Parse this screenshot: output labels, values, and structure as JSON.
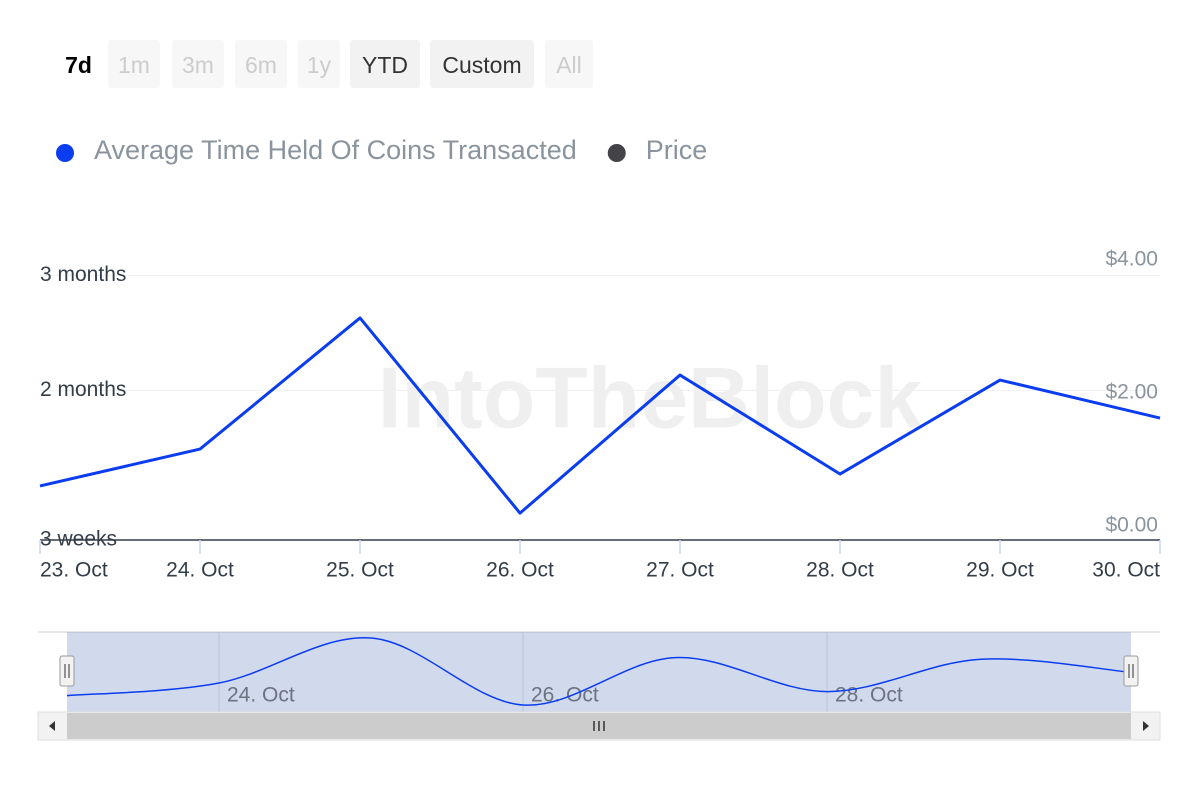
{
  "chart_data": {
    "type": "line",
    "range_buttons": [
      "7d",
      "1m",
      "3m",
      "6m",
      "1y",
      "YTD",
      "Custom",
      "All"
    ],
    "selected_button": "7d",
    "disabled_buttons": [
      "1m",
      "3m",
      "6m",
      "1y",
      "All"
    ],
    "watermark": "IntoTheBlock",
    "categories": [
      "23. Oct",
      "24. Oct",
      "25. Oct",
      "26. Oct",
      "27. Oct",
      "28. Oct",
      "29. Oct",
      "30. Oct"
    ],
    "series": [
      {
        "name": "Average Time Held Of Coins Transacted",
        "color": "#0a3cf0",
        "values": [
          35.1,
          44.7,
          78.9,
          28.0,
          64.0,
          38.2,
          62.7,
          52.8
        ]
      },
      {
        "name": "Price",
        "color": "#434348",
        "axis": "y2",
        "values": [
          null,
          null,
          null,
          null,
          null,
          null,
          null,
          null
        ]
      }
    ],
    "ylim": [
      21,
      94
    ],
    "yticks": [
      {
        "value": 21,
        "label": "3 weeks"
      },
      {
        "value": 60,
        "label": "2 months"
      },
      {
        "value": 90,
        "label": "3 months"
      }
    ],
    "y2lim": [
      -0.21,
      4
    ],
    "y2ticks": [
      {
        "value": 0,
        "label": "$0.00"
      },
      {
        "value": 2,
        "label": "$2.00"
      },
      {
        "value": 4,
        "label": "$4.00"
      }
    ],
    "navigator_ticks": [
      1,
      3,
      5
    ],
    "grid": true
  }
}
